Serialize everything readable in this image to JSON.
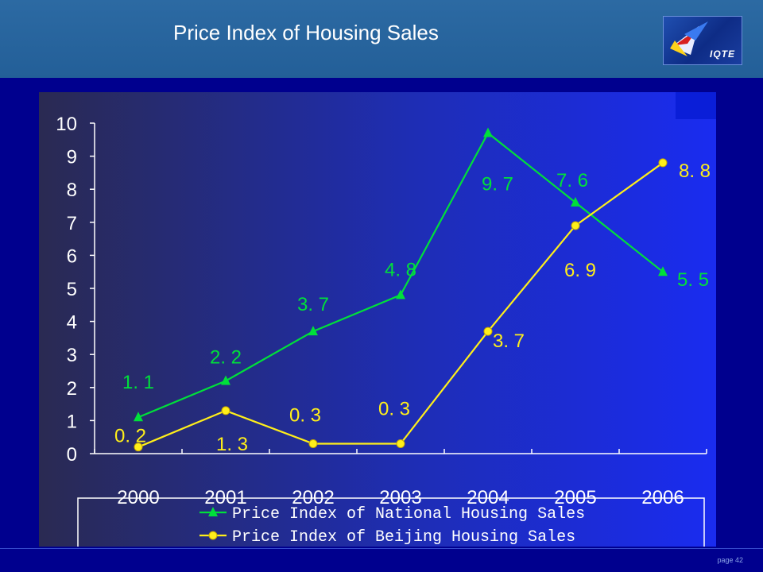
{
  "header": {
    "title": "Price Index of Housing Sales",
    "logo_text": "IQTE"
  },
  "footer": {
    "page_label": "page 42"
  },
  "chart_data": {
    "type": "line",
    "title": "",
    "categories": [
      "2000",
      "2001",
      "2002",
      "2003",
      "2004",
      "2005",
      "2006"
    ],
    "ylim": [
      0,
      10
    ],
    "yticks": [
      "0",
      "1",
      "2",
      "3",
      "4",
      "5",
      "6",
      "7",
      "8",
      "9",
      "10"
    ],
    "grid": false,
    "legend_position": "bottom",
    "series": [
      {
        "name": "Price Index of National Housing Sales",
        "values": [
          1.1,
          2.2,
          3.7,
          4.8,
          9.7,
          7.6,
          5.5
        ],
        "labels": [
          "1. 1",
          "2. 2",
          "3. 7",
          "4. 8",
          "9. 7",
          "7. 6",
          "5. 5"
        ],
        "color": "#00e03a",
        "marker": "triangle"
      },
      {
        "name": "Price Index of Beijing Housing Sales",
        "values": [
          0.2,
          1.3,
          0.3,
          0.3,
          3.7,
          6.9,
          8.8
        ],
        "labels": [
          "0. 2",
          "1. 3",
          "0. 3",
          "0. 3",
          "3. 7",
          "6. 9",
          "8. 8"
        ],
        "color": "#ffef1a",
        "marker": "circle"
      }
    ]
  }
}
